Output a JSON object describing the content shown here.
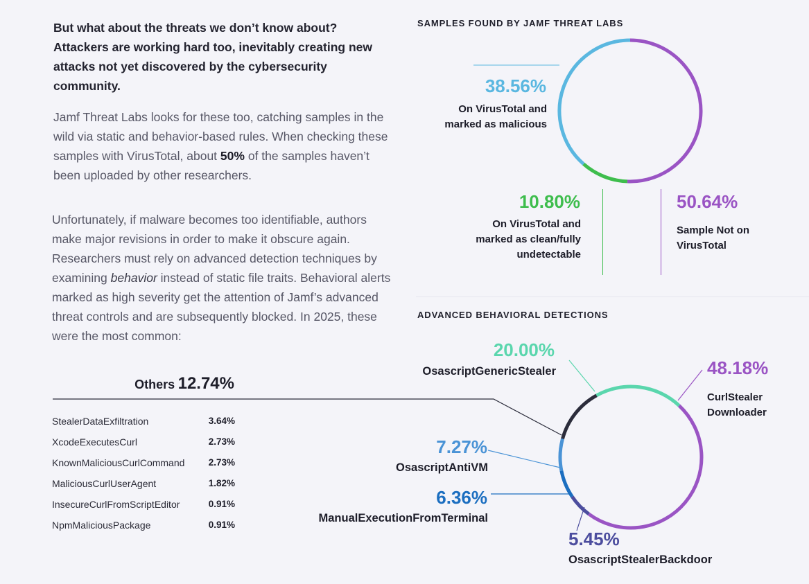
{
  "intro": {
    "lead": "But what about the threats we don’t know about? Attackers are working hard too, inevitably creating new attacks not yet discovered by the cybersecurity community.",
    "p1_a": "Jamf Threat Labs looks for these too, catching samples in the wild via static and behavior-based rules. When checking these samples with VirusTotal, about ",
    "p1_bold": "50%",
    "p1_b": " of the samples haven’t been uploaded by other researchers.",
    "p2_a": "Unfortunately, if malware becomes too identifiable, authors make major revisions in order to make it obscure again. Researchers must rely on advanced detection techniques by examining ",
    "p2_italic": "behavior",
    "p2_b": " instead of static file traits. Behavioral alerts marked as high severity get the attention of Jamf’s advanced threat controls and are subsequently blocked. In 2025, these were the most common:"
  },
  "colors": {
    "blue": "#5ab7e0",
    "green": "#3ebd4d",
    "purple": "#9a54c4",
    "teal": "#5ad6ad",
    "dark": "#2b2c3b",
    "mid_blue": "#4a93d6",
    "deep_blue": "#1b6ec0",
    "indigo": "#4c4d9e"
  },
  "chart_data": [
    {
      "type": "pie",
      "title": "SAMPLES FOUND BY JAMF THREAT LABS",
      "slices": [
        {
          "key": "not_on_vt",
          "value": 50.64,
          "pct_label": "50.64%",
          "label": "Sample Not on VirusTotal",
          "color": "#9a54c4"
        },
        {
          "key": "clean",
          "value": 10.8,
          "pct_label": "10.80%",
          "label": "On VirusTotal and marked as clean/fully undetectable",
          "color": "#3ebd4d"
        },
        {
          "key": "malicious",
          "value": 38.56,
          "pct_label": "38.56%",
          "label": "On VirusTotal and marked as malicious",
          "color": "#5ab7e0"
        }
      ]
    },
    {
      "type": "pie",
      "title": "ADVANCED BEHAVIORAL DETECTIONS",
      "slices": [
        {
          "key": "curl",
          "value": 48.18,
          "pct_label": "48.18%",
          "label": "CurlStealer Downloader",
          "color": "#9a54c4"
        },
        {
          "key": "backdoor",
          "value": 5.45,
          "pct_label": "5.45%",
          "label": "OsascriptStealerBackdoor",
          "color": "#4c4d9e"
        },
        {
          "key": "manual",
          "value": 6.36,
          "pct_label": "6.36%",
          "label": "ManualExecutionFromTerminal",
          "color": "#1b6ec0"
        },
        {
          "key": "antivm",
          "value": 7.27,
          "pct_label": "7.27%",
          "label": "OsascriptAntiVM",
          "color": "#4a93d6"
        },
        {
          "key": "others",
          "value": 12.74,
          "pct_label": "12.74%",
          "label": "Others",
          "color": "#2b2c3b"
        },
        {
          "key": "generic",
          "value": 20.0,
          "pct_label": "20.00%",
          "label": "OsascriptGenericStealer",
          "color": "#5ad6ad"
        }
      ],
      "others_breakdown": [
        {
          "name": "StealerDataExfiltration",
          "value": "3.64%"
        },
        {
          "name": "XcodeExecutesCurl",
          "value": "2.73%"
        },
        {
          "name": "KnownMaliciousCurlCommand",
          "value": "2.73%"
        },
        {
          "name": "MaliciousCurlUserAgent",
          "value": "1.82%"
        },
        {
          "name": "InsecureCurlFromScriptEditor",
          "value": "0.91%"
        },
        {
          "name": "NpmMaliciousPackage",
          "value": "0.91%"
        }
      ]
    }
  ]
}
